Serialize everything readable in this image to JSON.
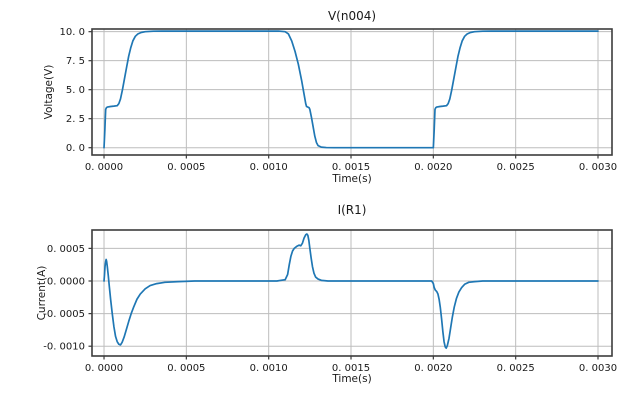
{
  "figure": {
    "background": "#ffffff",
    "text_color": "#1a1a1a",
    "grid_color": "#bdbdbd",
    "spine_color": "#3c3c3c"
  },
  "chart_data": [
    {
      "type": "line",
      "title": "V(n004)",
      "xlabel": "Time(s)",
      "ylabel": "Voltage(V)",
      "legend": "none",
      "grid": true,
      "line_color": "#1f77b4",
      "xlim": [
        -7.3e-05,
        0.003085
      ],
      "ylim": [
        -0.63,
        10.23
      ],
      "xticks": {
        "values": [
          0.0,
          0.0005,
          0.001,
          0.0015,
          0.002,
          0.0025,
          0.003
        ],
        "labels": [
          "0. 0000",
          "0. 0005",
          "0. 0010",
          "0. 0015",
          "0. 0020",
          "0. 0025",
          "0. 0030"
        ]
      },
      "yticks": {
        "values": [
          0.0,
          2.5,
          5.0,
          7.5,
          10.0
        ],
        "labels": [
          "0. 0",
          "2. 5",
          "5. 0",
          "7. 5",
          "10. 0"
        ]
      },
      "series": [
        {
          "name": "V(n004)",
          "points": [
            [
              0,
              0
            ],
            [
              5e-06,
              1.5
            ],
            [
              1e-05,
              3.3
            ],
            [
              1.5e-05,
              3.45
            ],
            [
              2e-05,
              3.5
            ],
            [
              4e-05,
              3.55
            ],
            [
              6e-05,
              3.58
            ],
            [
              8e-05,
              3.62
            ],
            [
              9e-05,
              3.8
            ],
            [
              0.0001,
              4.2
            ],
            [
              0.000112,
              5.0
            ],
            [
              0.000125,
              6.0
            ],
            [
              0.000138,
              7.0
            ],
            [
              0.00015,
              7.9
            ],
            [
              0.000162,
              8.6
            ],
            [
              0.000175,
              9.2
            ],
            [
              0.00019,
              9.6
            ],
            [
              0.000205,
              9.8
            ],
            [
              0.000225,
              9.93
            ],
            [
              0.00025,
              10.0
            ],
            [
              0.0003,
              10.04
            ],
            [
              0.00035,
              10.05
            ],
            [
              0.0005,
              10.05
            ],
            [
              0.0007,
              10.05
            ],
            [
              0.0009,
              10.05
            ],
            [
              0.00106,
              10.05
            ],
            [
              0.0011,
              10.0
            ],
            [
              0.00112,
              9.8
            ],
            [
              0.00114,
              9.2
            ],
            [
              0.00116,
              8.3
            ],
            [
              0.00118,
              7.2
            ],
            [
              0.0012,
              5.8
            ],
            [
              0.001215,
              4.6
            ],
            [
              0.001225,
              3.8
            ],
            [
              0.00123,
              3.55
            ],
            [
              0.001245,
              3.45
            ],
            [
              0.00125,
              3.3
            ],
            [
              0.00126,
              2.6
            ],
            [
              0.00127,
              1.8
            ],
            [
              0.00128,
              1.0
            ],
            [
              0.00129,
              0.45
            ],
            [
              0.0013,
              0.18
            ],
            [
              0.00132,
              0.05
            ],
            [
              0.00135,
              0.01
            ],
            [
              0.0014,
              0
            ],
            [
              0.0016,
              0
            ],
            [
              0.0018,
              0
            ],
            [
              0.002,
              0
            ],
            [
              0.002005,
              1.5
            ],
            [
              0.00201,
              3.3
            ],
            [
              0.002015,
              3.45
            ],
            [
              0.00202,
              3.5
            ],
            [
              0.00204,
              3.55
            ],
            [
              0.00206,
              3.58
            ],
            [
              0.00208,
              3.62
            ],
            [
              0.00209,
              3.8
            ],
            [
              0.0021,
              4.2
            ],
            [
              0.002112,
              5.0
            ],
            [
              0.002125,
              6.0
            ],
            [
              0.002138,
              7.0
            ],
            [
              0.00215,
              7.9
            ],
            [
              0.002162,
              8.6
            ],
            [
              0.002175,
              9.2
            ],
            [
              0.00219,
              9.6
            ],
            [
              0.002205,
              9.8
            ],
            [
              0.002225,
              9.93
            ],
            [
              0.00225,
              10.0
            ],
            [
              0.0023,
              10.04
            ],
            [
              0.00235,
              10.05
            ],
            [
              0.0026,
              10.05
            ],
            [
              0.0028,
              10.05
            ],
            [
              0.003,
              10.05
            ]
          ]
        }
      ]
    },
    {
      "type": "line",
      "title": "I(R1)",
      "xlabel": "Time(s)",
      "ylabel": "Current(A)",
      "legend": "none",
      "grid": true,
      "line_color": "#1f77b4",
      "xlim": [
        -7.3e-05,
        0.003085
      ],
      "ylim": [
        -0.00115,
        0.000782
      ],
      "xticks": {
        "values": [
          0.0,
          0.0005,
          0.001,
          0.0015,
          0.002,
          0.0025,
          0.003
        ],
        "labels": [
          "0. 0000",
          "0. 0005",
          "0. 0010",
          "0. 0015",
          "0. 0020",
          "0. 0025",
          "0. 0030"
        ]
      },
      "yticks": {
        "values": [
          0.0005,
          0.0,
          -0.0005,
          -0.001
        ],
        "labels": [
          "0. 0005",
          "0. 0000",
          "-0. 0005",
          "-0. 0010"
        ]
      },
      "series": [
        {
          "name": "I(R1)",
          "points": [
            [
              0,
              0
            ],
            [
              3e-06,
              0.0001
            ],
            [
              6e-06,
              0.00022
            ],
            [
              1e-05,
              0.0003
            ],
            [
              1.3e-05,
              0.00033
            ],
            [
              1.6e-05,
              0.0003
            ],
            [
              2e-05,
              0.00022
            ],
            [
              2.6e-05,
              8e-05
            ],
            [
              3.2e-05,
              -8e-05
            ],
            [
              4e-05,
              -0.00028
            ],
            [
              5e-05,
              -0.0005
            ],
            [
              6e-05,
              -0.0007
            ],
            [
              7e-05,
              -0.00085
            ],
            [
              8e-05,
              -0.00093
            ],
            [
              9e-05,
              -0.00097
            ],
            [
              0.0001,
              -0.00098
            ],
            [
              0.00011,
              -0.00094
            ],
            [
              0.000122,
              -0.00086
            ],
            [
              0.000135,
              -0.00075
            ],
            [
              0.00015,
              -0.00062
            ],
            [
              0.000165,
              -0.0005
            ],
            [
              0.00018,
              -0.0004
            ],
            [
              0.0002,
              -0.00028
            ],
            [
              0.00022,
              -0.0002
            ],
            [
              0.00025,
              -0.00012
            ],
            [
              0.00028,
              -7e-05
            ],
            [
              0.00032,
              -4e-05
            ],
            [
              0.00037,
              -2e-05
            ],
            [
              0.00045,
              -1e-05
            ],
            [
              0.00055,
              0
            ],
            [
              0.0008,
              0
            ],
            [
              0.00105,
              0
            ],
            [
              0.0011,
              2e-05
            ],
            [
              0.001115,
              0.0001
            ],
            [
              0.001125,
              0.00025
            ],
            [
              0.001135,
              0.00038
            ],
            [
              0.001145,
              0.00046
            ],
            [
              0.001155,
              0.0005
            ],
            [
              0.00117,
              0.00053
            ],
            [
              0.001185,
              0.00055
            ],
            [
              0.001195,
              0.00054
            ],
            [
              0.001205,
              0.00058
            ],
            [
              0.001215,
              0.00066
            ],
            [
              0.001225,
              0.00071
            ],
            [
              0.001232,
              0.00072
            ],
            [
              0.001238,
              0.0007
            ],
            [
              0.001244,
              0.00062
            ],
            [
              0.00125,
              0.0005
            ],
            [
              0.001258,
              0.00035
            ],
            [
              0.001266,
              0.00022
            ],
            [
              0.001275,
              0.00012
            ],
            [
              0.001285,
              6e-05
            ],
            [
              0.0013,
              3e-05
            ],
            [
              0.00132,
              1e-05
            ],
            [
              0.00136,
              0
            ],
            [
              0.0016,
              0
            ],
            [
              0.0019,
              0
            ],
            [
              0.00199,
              0
            ],
            [
              0.002,
              -4e-05
            ],
            [
              0.002005,
              -0.0001
            ],
            [
              0.002012,
              -0.00014
            ],
            [
              0.00202,
              -0.00016
            ],
            [
              0.002028,
              -0.0002
            ],
            [
              0.002035,
              -0.00028
            ],
            [
              0.002042,
              -0.0004
            ],
            [
              0.00205,
              -0.00058
            ],
            [
              0.002058,
              -0.00078
            ],
            [
              0.002065,
              -0.00093
            ],
            [
              0.002072,
              -0.00101
            ],
            [
              0.002078,
              -0.00103
            ],
            [
              0.002085,
              -0.00099
            ],
            [
              0.002095,
              -0.00088
            ],
            [
              0.002105,
              -0.00072
            ],
            [
              0.002115,
              -0.00056
            ],
            [
              0.002127,
              -0.0004
            ],
            [
              0.00214,
              -0.00027
            ],
            [
              0.002155,
              -0.00017
            ],
            [
              0.002172,
              -0.0001
            ],
            [
              0.00219,
              -5e-05
            ],
            [
              0.002215,
              -2e-05
            ],
            [
              0.00225,
              -1e-05
            ],
            [
              0.0023,
              0
            ],
            [
              0.0026,
              0
            ],
            [
              0.003,
              0
            ]
          ]
        }
      ]
    }
  ]
}
